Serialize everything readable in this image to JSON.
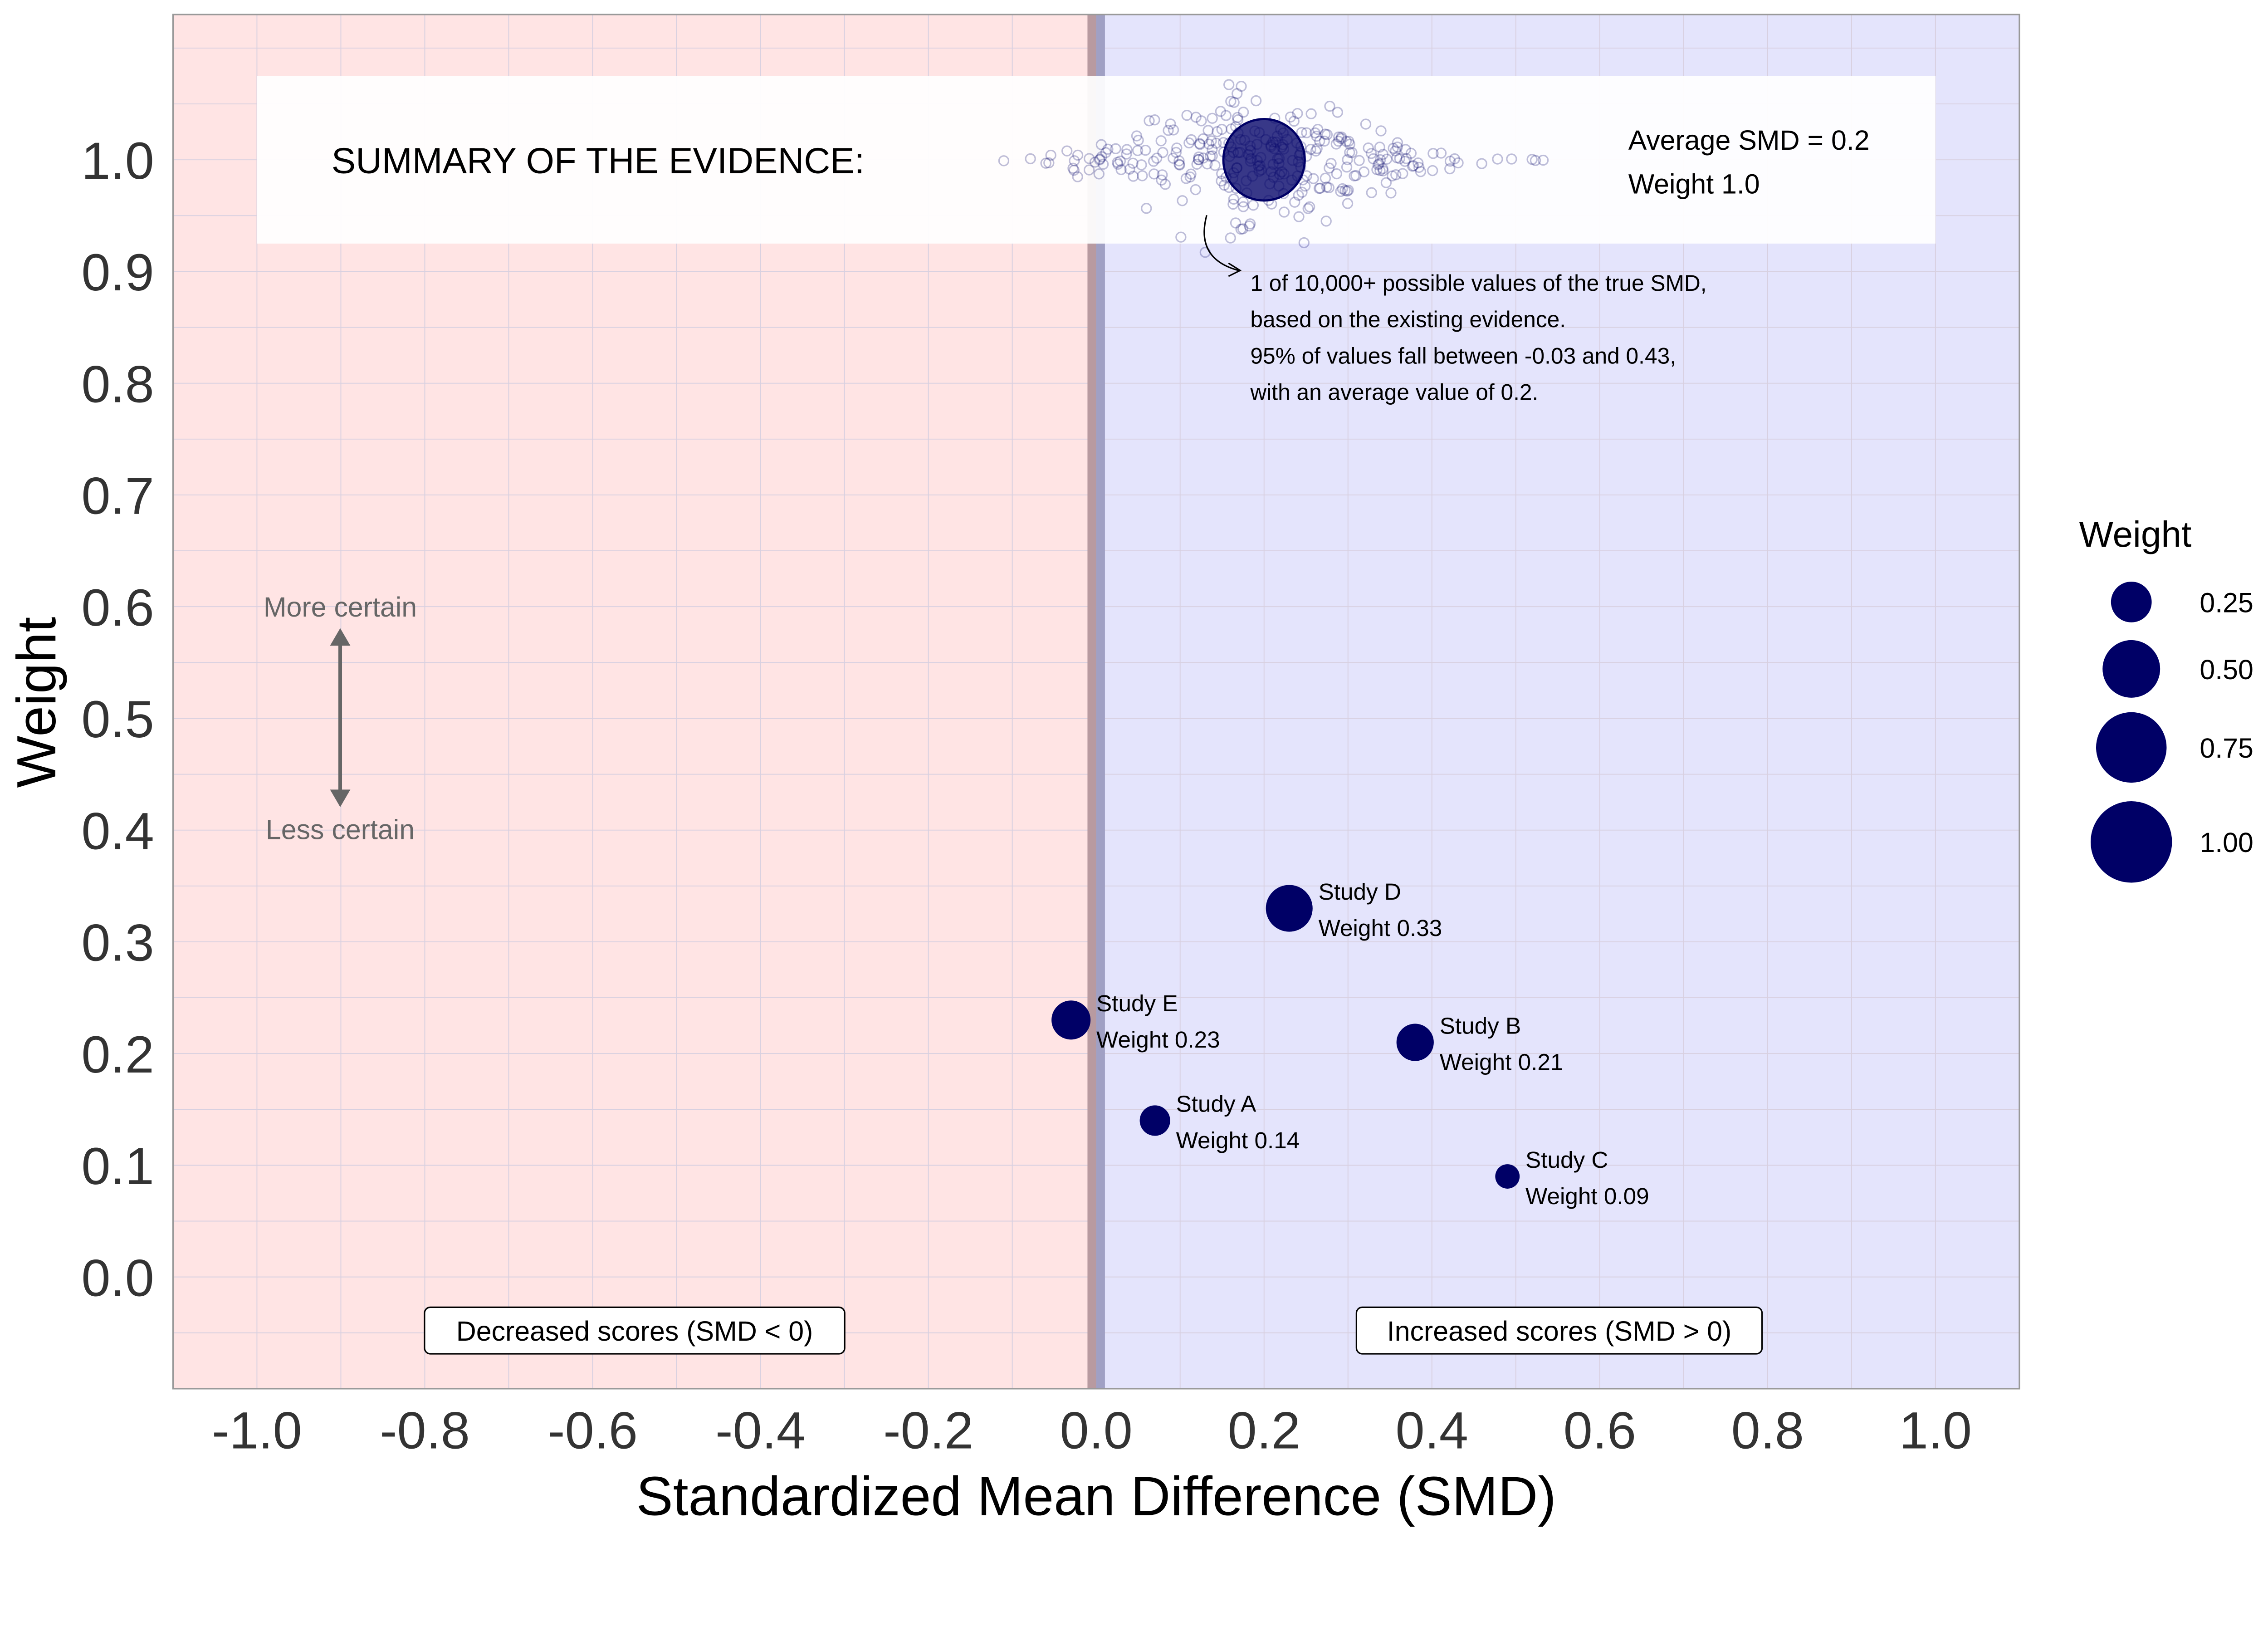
{
  "chart_data": {
    "type": "scatter",
    "xlabel": "Standardized Mean Difference (SMD)",
    "ylabel": "Weight",
    "xlim": [
      -1.1,
      1.1
    ],
    "ylim": [
      -0.1,
      1.13
    ],
    "xticks": [
      "-1.0",
      "-0.8",
      "-0.6",
      "-0.4",
      "-0.2",
      "0.0",
      "0.2",
      "0.4",
      "0.6",
      "0.8",
      "1.0"
    ],
    "yticks": [
      "0.0",
      "0.1",
      "0.2",
      "0.3",
      "0.4",
      "0.5",
      "0.6",
      "0.7",
      "0.8",
      "0.9",
      "1.0"
    ],
    "grid": true,
    "regions": {
      "negative_color": "#ffe4e4",
      "positive_color": "#e4e4fc"
    },
    "point_color": "#000066",
    "studies": [
      {
        "name": "Study A",
        "label": "Weight 0.14",
        "smd": 0.07,
        "weight": 0.14
      },
      {
        "name": "Study B",
        "label": "Weight 0.21",
        "smd": 0.38,
        "weight": 0.21
      },
      {
        "name": "Study C",
        "label": "Weight 0.09",
        "smd": 0.49,
        "weight": 0.09
      },
      {
        "name": "Study D",
        "label": "Weight 0.33",
        "smd": 0.23,
        "weight": 0.33
      },
      {
        "name": "Study E",
        "label": "Weight 0.23",
        "smd": -0.03,
        "weight": 0.23
      }
    ],
    "summary": {
      "title": "SUMMARY OF THE EVIDENCE:",
      "average_label": "Average SMD = 0.2",
      "weight_label": "Weight 1.0",
      "smd": 0.2,
      "weight": 1.0,
      "ci_low": -0.03,
      "ci_high": 0.43
    },
    "annotation": [
      "1 of 10,000+ possible values of the true SMD,",
      "based on the existing evidence.",
      "95% of values fall between -0.03 and 0.43,",
      "with an average value of 0.2."
    ],
    "certainty": {
      "more": "More certain",
      "less": "Less certain"
    },
    "region_labels": {
      "negative": "Decreased scores (SMD < 0)",
      "positive": "Increased scores (SMD > 0)"
    },
    "legend": {
      "title": "Weight",
      "placement": "right",
      "entries": [
        "0.25",
        "0.50",
        "0.75",
        "1.00"
      ],
      "values": [
        0.25,
        0.5,
        0.75,
        1.0
      ]
    }
  }
}
